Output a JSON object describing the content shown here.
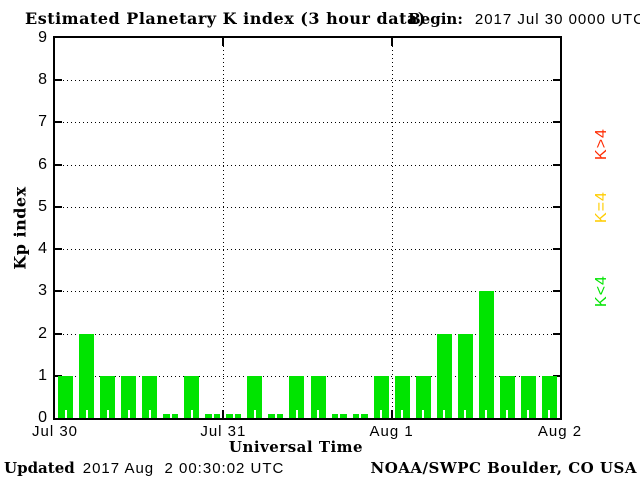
{
  "header": {
    "title": "Estimated Planetary K index (3 hour data)",
    "begin_label": "Begin:",
    "begin_value": "2017 Jul 30 0000 UTC"
  },
  "footer": {
    "updated_label": "Updated",
    "updated_value": "2017 Aug  2 00:30:02 UTC",
    "credit": "NOAA/SWPC Boulder, CO USA"
  },
  "colors": {
    "bar_green": "#00e400",
    "legend_red": "#ff2a00",
    "legend_yellow": "#ffcc00",
    "legend_green": "#00e400",
    "axis": "#000000",
    "background": "#ffffff"
  },
  "chart_data": {
    "type": "bar",
    "title": "Estimated Planetary K index (3 hour data)",
    "xlabel": "Universal Time",
    "ylabel": "Kp index",
    "ylim": [
      0,
      9
    ],
    "y_ticks": [
      "0",
      "1",
      "2",
      "3",
      "4",
      "5",
      "6",
      "7",
      "8",
      "9"
    ],
    "x_tick_labels": [
      "Jul 30",
      "Jul 31",
      "Aug 1",
      "Aug 2"
    ],
    "interval_hours": 3,
    "bars_per_day": 8,
    "days": [
      {
        "date": "Jul 30",
        "values": [
          1,
          2,
          1,
          1,
          1,
          0,
          1,
          0
        ]
      },
      {
        "date": "Jul 31",
        "values": [
          0,
          1,
          0,
          1,
          1,
          0,
          0,
          1
        ]
      },
      {
        "date": "Aug 1",
        "values": [
          1,
          1,
          2,
          2,
          3,
          1,
          1,
          1
        ]
      }
    ],
    "values": [
      1,
      2,
      1,
      1,
      1,
      0,
      1,
      0,
      0,
      1,
      0,
      1,
      1,
      0,
      0,
      1,
      1,
      1,
      2,
      2,
      3,
      1,
      1,
      1
    ],
    "bar_color": "#00e400",
    "grid": {
      "horizontal_dotted_at": [
        1,
        2,
        3,
        4,
        5,
        6,
        7,
        8
      ],
      "vertical_dotted_at": [
        "Jul 31",
        "Aug 1"
      ]
    },
    "legend_position": "right",
    "legend": [
      {
        "label": "K>4",
        "color": "#ff2a00"
      },
      {
        "label": "K=4",
        "color": "#ffcc00"
      },
      {
        "label": "K<4",
        "color": "#00e400"
      }
    ]
  }
}
